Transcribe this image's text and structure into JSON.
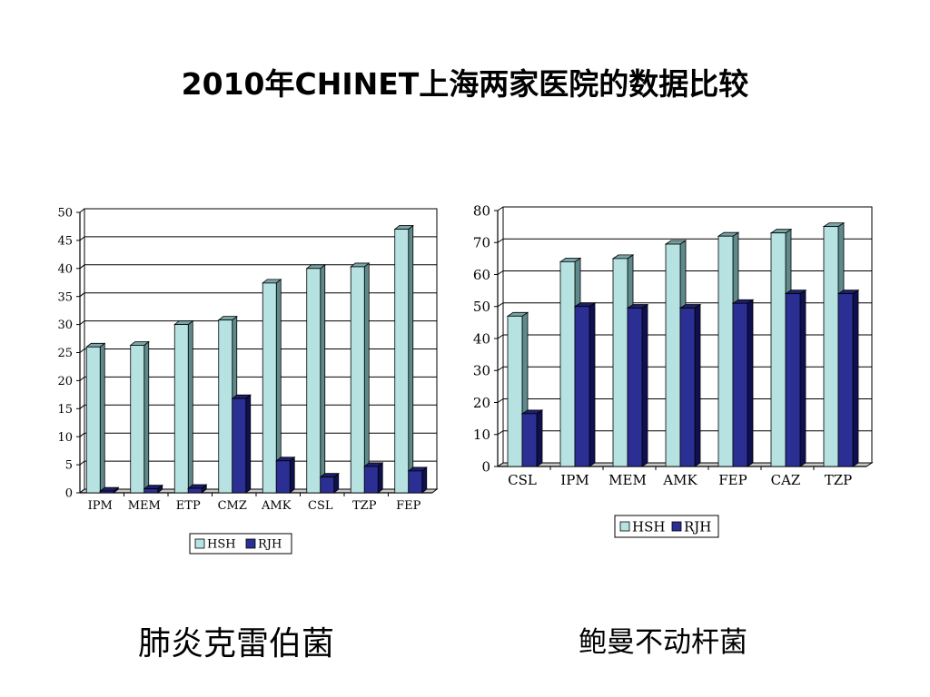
{
  "title": "2010年CHINET上海两家医院的数据比较",
  "colors": {
    "HSH_front": "#b7e2e2",
    "HSH_side": "#5f8a8c",
    "HSH_top": "#7aa5a7",
    "RJH_front": "#2b2f94",
    "RJH_side": "#0e1050",
    "RJH_top": "#1c1f6a",
    "edge": "#000000"
  },
  "chart_data": [
    {
      "type": "bar",
      "subtitle": "肺炎克雷伯菌",
      "categories": [
        "IPM",
        "MEM",
        "ETP",
        "CMZ",
        "AMK",
        "CSL",
        "TZP",
        "FEP"
      ],
      "series": [
        {
          "name": "HSH",
          "values": [
            26,
            26.3,
            30,
            30.8,
            37.4,
            40,
            40.3,
            47
          ]
        },
        {
          "name": "RJH",
          "values": [
            0.3,
            0.7,
            0.8,
            16.8,
            5.7,
            2.8,
            4.7,
            3.9
          ]
        }
      ],
      "ylim": [
        0,
        50
      ],
      "yticks": [
        "0",
        "5",
        "10",
        "15",
        "20",
        "25",
        "30",
        "35",
        "40",
        "45",
        "50"
      ],
      "legend": [
        "HSH",
        "RJH"
      ],
      "legend_position": "bottom",
      "grid": true
    },
    {
      "type": "bar",
      "subtitle": "鲍曼不动杆菌",
      "categories": [
        "CSL",
        "IPM",
        "MEM",
        "AMK",
        "FEP",
        "CAZ",
        "TZP"
      ],
      "series": [
        {
          "name": "HSH",
          "values": [
            47,
            64,
            65,
            69.5,
            72,
            73,
            75
          ]
        },
        {
          "name": "RJH",
          "values": [
            16.5,
            50,
            49.5,
            49.5,
            51,
            54,
            54
          ]
        }
      ],
      "ylim": [
        0,
        80
      ],
      "yticks": [
        "0",
        "10",
        "20",
        "30",
        "40",
        "50",
        "60",
        "70",
        "80"
      ],
      "legend": [
        "HSH",
        "RJH"
      ],
      "legend_position": "bottom",
      "grid": true
    }
  ]
}
